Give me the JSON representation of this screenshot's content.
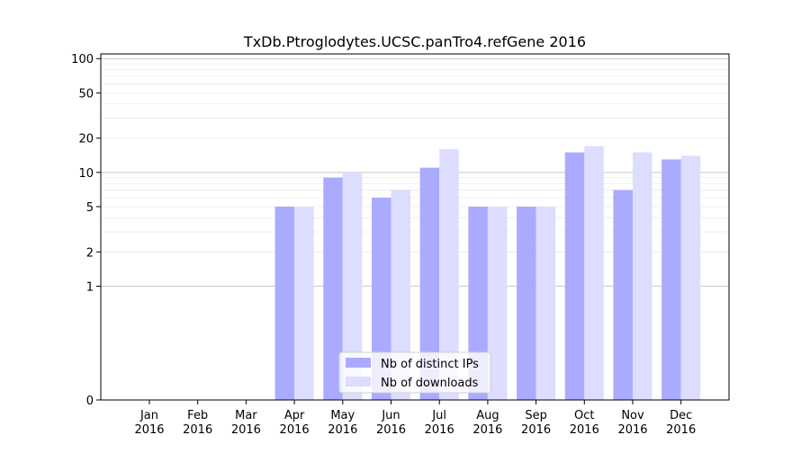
{
  "chart_data": {
    "type": "bar",
    "title": "TxDb.Ptroglodytes.UCSC.panTro4.refGene 2016",
    "xlabel": "",
    "ylabel": "",
    "y_scale": "symlog",
    "y_ticks": [
      0,
      1,
      2,
      5,
      10,
      20,
      50,
      100
    ],
    "y_tick_labels": [
      "0",
      "1",
      "2",
      "5",
      "10",
      "20",
      "50",
      "100"
    ],
    "ylim": [
      0,
      110
    ],
    "grid": "horizontal",
    "legend_position": "lower center",
    "categories": [
      {
        "month": "Jan",
        "year": "2016"
      },
      {
        "month": "Feb",
        "year": "2016"
      },
      {
        "month": "Mar",
        "year": "2016"
      },
      {
        "month": "Apr",
        "year": "2016"
      },
      {
        "month": "May",
        "year": "2016"
      },
      {
        "month": "Jun",
        "year": "2016"
      },
      {
        "month": "Jul",
        "year": "2016"
      },
      {
        "month": "Aug",
        "year": "2016"
      },
      {
        "month": "Sep",
        "year": "2016"
      },
      {
        "month": "Oct",
        "year": "2016"
      },
      {
        "month": "Nov",
        "year": "2016"
      },
      {
        "month": "Dec",
        "year": "2016"
      }
    ],
    "series": [
      {
        "name": "Nb of distinct IPs",
        "color": "#aaaaff",
        "values": [
          0,
          0,
          0,
          5,
          9,
          6,
          11,
          5,
          5,
          15,
          7,
          13
        ]
      },
      {
        "name": "Nb of downloads",
        "color": "#ddddff",
        "values": [
          0,
          0,
          0,
          5,
          10,
          7,
          16,
          5,
          5,
          17,
          15,
          14
        ]
      }
    ]
  }
}
